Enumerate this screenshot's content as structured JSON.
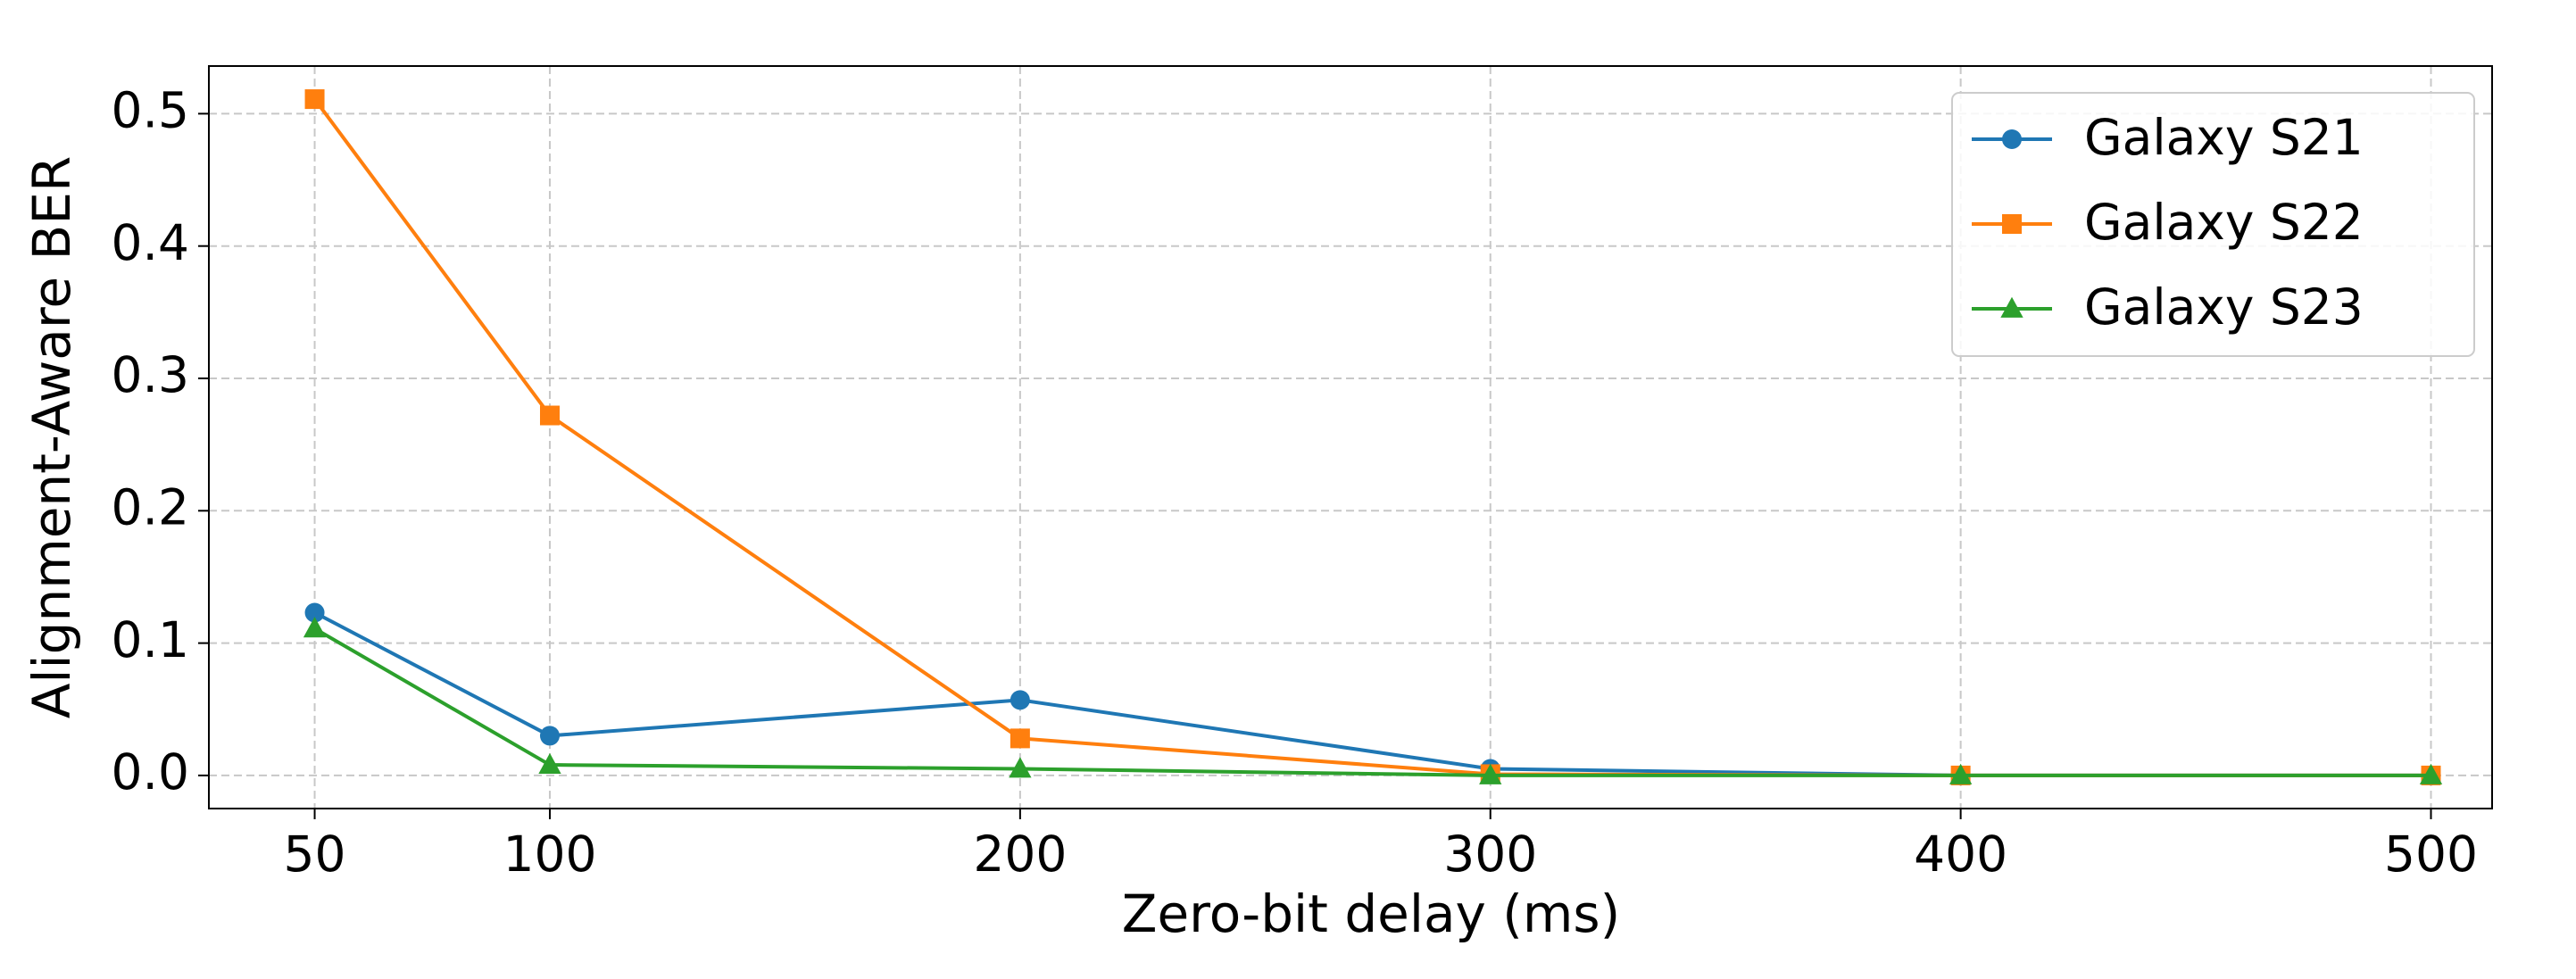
{
  "chart_data": {
    "type": "line",
    "x_label": "Zero-bit delay (ms)",
    "y_label": "Alignment-Aware BER",
    "x": [
      50,
      100,
      200,
      300,
      400,
      500
    ],
    "series": [
      {
        "name": "Galaxy S21",
        "color": "#1f77b4",
        "marker": "circle",
        "values": [
          0.123,
          0.03,
          0.057,
          0.005,
          0.0,
          0.0
        ]
      },
      {
        "name": "Galaxy S22",
        "color": "#ff7f0e",
        "marker": "square",
        "values": [
          0.511,
          0.272,
          0.028,
          0.001,
          0.0,
          0.0
        ]
      },
      {
        "name": "Galaxy S23",
        "color": "#2ca02c",
        "marker": "triangle",
        "values": [
          0.111,
          0.008,
          0.005,
          0.0,
          0.0,
          0.0
        ]
      }
    ],
    "xlim": [
      27.5,
      513
    ],
    "ylim": [
      -0.025,
      0.536
    ],
    "xticks": [
      50,
      100,
      200,
      300,
      400,
      500
    ],
    "yticks": [
      {
        "value": 0,
        "label": "0.0"
      },
      0.1,
      0.2,
      0.3,
      0.4,
      0.5
    ],
    "grid": true,
    "legend": "upper right"
  }
}
